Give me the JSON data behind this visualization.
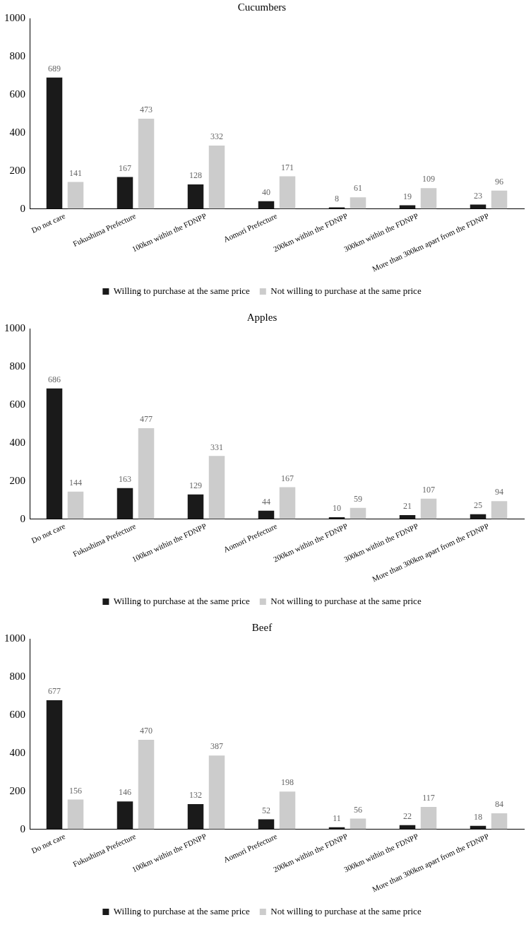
{
  "chart_data": [
    {
      "type": "bar",
      "title": "Cucumbers",
      "categories": [
        "Do not care",
        "Fukushima Prefecture",
        "100km within the FDNPP",
        "Aomori Prefecture",
        "200km within the FDNPP",
        "300km within the FDNPP",
        "More than 300km apart from the FDNPP"
      ],
      "series": [
        {
          "name": "Willing to purchase at the same price",
          "color": "#1a1a1a",
          "values": [
            689,
            167,
            128,
            40,
            8,
            19,
            23
          ]
        },
        {
          "name": "Not willing to purchase at the same price",
          "color": "#cccccc",
          "values": [
            141,
            473,
            332,
            171,
            61,
            109,
            96
          ]
        }
      ],
      "ylim": [
        0,
        1000
      ],
      "yticks": [
        0,
        200,
        400,
        600,
        800,
        1000
      ],
      "data_labels": true,
      "legend": "bottom"
    },
    {
      "type": "bar",
      "title": "Apples",
      "categories": [
        "Do not care",
        "Fukushima Prefecture",
        "100km within the FDNPP",
        "Aomori Prefecture",
        "200km within the FDNPP",
        "300km within the FDNPP",
        "More than 300km apart from the FDNPP"
      ],
      "series": [
        {
          "name": "Willing to purchase at the same price",
          "color": "#1a1a1a",
          "values": [
            686,
            163,
            129,
            44,
            10,
            21,
            25
          ]
        },
        {
          "name": "Not willing to purchase at the same price",
          "color": "#cccccc",
          "values": [
            144,
            477,
            331,
            167,
            59,
            107,
            94
          ]
        }
      ],
      "ylim": [
        0,
        1000
      ],
      "yticks": [
        0,
        200,
        400,
        600,
        800,
        1000
      ],
      "data_labels": true,
      "legend": "bottom"
    },
    {
      "type": "bar",
      "title": "Beef",
      "categories": [
        "Do not care",
        "Fukushima Prefecture",
        "100km within the FDNPP",
        "Aomori Prefecture",
        "200km within the FDNPP",
        "300km within the FDNPP",
        "More than 300km apart from the FDNPP"
      ],
      "series": [
        {
          "name": "Willing to purchase at the same price",
          "color": "#1a1a1a",
          "values": [
            677,
            146,
            132,
            52,
            11,
            22,
            18
          ]
        },
        {
          "name": "Not willing to purchase at the same price",
          "color": "#cccccc",
          "values": [
            156,
            470,
            387,
            198,
            56,
            117,
            84
          ]
        }
      ],
      "ylim": [
        0,
        1000
      ],
      "yticks": [
        0,
        200,
        400,
        600,
        800,
        1000
      ],
      "data_labels": true,
      "legend": "bottom"
    }
  ]
}
